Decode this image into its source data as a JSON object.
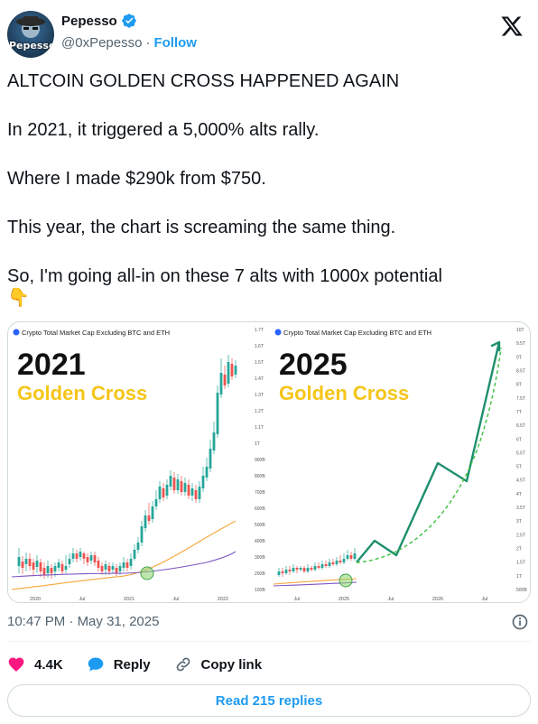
{
  "author": {
    "display_name": "Pepesso",
    "handle": "@0xPepesso",
    "separator": "·",
    "follow_label": "Follow",
    "avatar_text": "Pepesso"
  },
  "tweet": {
    "lines": [
      "ALTCOIN GOLDEN CROSS HAPPENED AGAIN",
      "In 2021, it triggered a 5,000% alts rally.",
      "Where I made $290k from $750.",
      "This year, the chart is screaming the same thing.",
      "So, I'm going all-in on these 7 alts with 1000x potential"
    ],
    "emoji": "👇"
  },
  "image": {
    "left": {
      "source_label": "Crypto Total Market Cap Excluding BTC and ETH",
      "year": "2021",
      "subtitle": "Golden Cross",
      "y_ticks": [
        "1.7T",
        "1.6T",
        "1.5T",
        "1.4T",
        "1.3T",
        "1.2T",
        "1.1T",
        "1T",
        "900B",
        "800B",
        "700B",
        "600B",
        "500B",
        "400B",
        "300B",
        "200B",
        "100B"
      ],
      "x_ticks": [
        "2020",
        "Jul",
        "2021",
        "Jul",
        "2022"
      ]
    },
    "right": {
      "source_label": "Crypto Total Market Cap Excluding BTC and ETH",
      "year": "2025",
      "subtitle": "Golden Cross",
      "y_ticks": [
        "10T",
        "9.5T",
        "9T",
        "8.5T",
        "8T",
        "7.5T",
        "7T",
        "6.5T",
        "6T",
        "5.5T",
        "5T",
        "4.5T",
        "4T",
        "3.5T",
        "3T",
        "2.5T",
        "2T",
        "1.5T",
        "1T",
        "500B"
      ],
      "x_ticks": [
        "Jul",
        "2025",
        "Jul",
        "2026",
        "Jul"
      ]
    },
    "colors": {
      "up": "#26a69a",
      "down": "#ef5350",
      "ma_short": "#f6a53b",
      "ma_long": "#7e57c2",
      "circle": "#8bd36a",
      "title": "#111111",
      "subtitle": "#f5c518"
    }
  },
  "meta": {
    "time": "10:47 PM",
    "separator": "·",
    "date": "May 31, 2025"
  },
  "actions": {
    "likes": "4.4K",
    "reply_label": "Reply",
    "copy_label": "Copy link"
  },
  "read_replies_label": "Read 215 replies"
}
